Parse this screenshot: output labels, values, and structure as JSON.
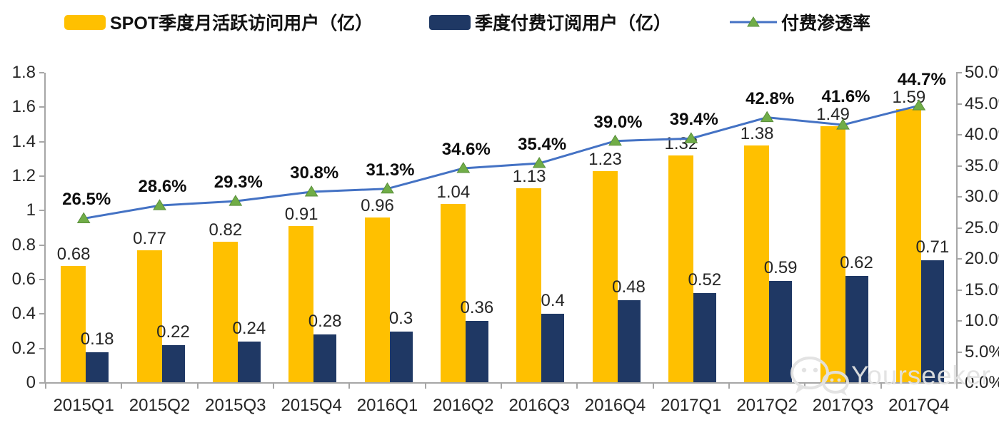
{
  "colors": {
    "mau_bar": "#FFC000",
    "subscriber_bar": "#1F3864",
    "penetration_line": "#4472C4",
    "penetration_marker": "#70AD47",
    "penetration_marker_edge": "#5a8f3c",
    "axis": "#a6a6a6",
    "label_text": "#262626"
  },
  "chart_data": {
    "type": "combo-bar-line",
    "title": "",
    "legend_position": "top",
    "grid": false,
    "categories": [
      "2015Q1",
      "2015Q2",
      "2015Q3",
      "2015Q4",
      "2016Q1",
      "2016Q2",
      "2016Q3",
      "2016Q4",
      "2017Q1",
      "2017Q2",
      "2017Q3",
      "2017Q4"
    ],
    "series": [
      {
        "name": "SPOT季度月活跃访问用户（亿）",
        "type": "bar",
        "axis": "left",
        "color": "#FFC000",
        "values": [
          0.68,
          0.77,
          0.82,
          0.91,
          0.96,
          1.04,
          1.13,
          1.23,
          1.32,
          1.38,
          1.49,
          1.59
        ],
        "labels": [
          "0.68",
          "0.77",
          "0.82",
          "0.91",
          "0.96",
          "1.04",
          "1.13",
          "1.23",
          "1.32",
          "1.38",
          "1.49",
          "1.59"
        ]
      },
      {
        "name": "季度付费订阅用户（亿）",
        "type": "bar",
        "axis": "left",
        "color": "#1F3864",
        "values": [
          0.18,
          0.22,
          0.24,
          0.28,
          0.3,
          0.36,
          0.4,
          0.48,
          0.52,
          0.59,
          0.62,
          0.71
        ],
        "labels": [
          "0.18",
          "0.22",
          "0.24",
          "0.28",
          "0.3",
          "0.36",
          "0.4",
          "0.48",
          "0.52",
          "0.59",
          "0.62",
          "0.71"
        ]
      },
      {
        "name": "付费渗透率",
        "type": "line",
        "axis": "right",
        "color": "#4472C4",
        "marker": "triangle",
        "marker_color": "#70AD47",
        "values": [
          26.5,
          28.6,
          29.3,
          30.8,
          31.3,
          34.6,
          35.4,
          39.0,
          39.4,
          42.8,
          41.6,
          44.7
        ],
        "labels": [
          "26.5%",
          "28.6%",
          "29.3%",
          "30.8%",
          "31.3%",
          "34.6%",
          "35.4%",
          "39.0%",
          "39.4%",
          "42.8%",
          "41.6%",
          "44.7%"
        ]
      }
    ],
    "left_axis": {
      "min": 0,
      "max": 1.8,
      "tick_step": 0.2,
      "tick_labels": [
        "0",
        "0.2",
        "0.4",
        "0.6",
        "0.8",
        "1",
        "1.2",
        "1.4",
        "1.6",
        "1.8"
      ]
    },
    "right_axis": {
      "min": 0,
      "max": 50,
      "tick_step": 5,
      "unit": "%",
      "tick_labels": [
        "0.0%",
        "5.0%",
        "10.0%",
        "15.0%",
        "20.0%",
        "25.0%",
        "30.0%",
        "35.0%",
        "40.0%",
        "45.0%",
        "50.0%"
      ]
    }
  },
  "watermark": {
    "text": "Yourseeker",
    "icon": "wechat-icon"
  }
}
